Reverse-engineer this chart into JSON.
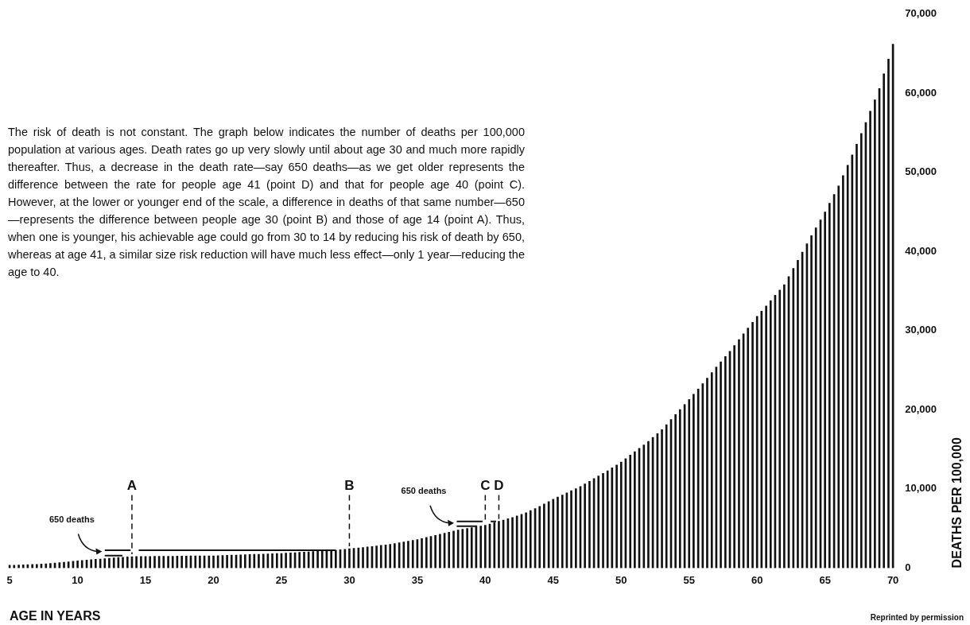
{
  "chart_data": {
    "type": "bar",
    "xlabel": "AGE IN YEARS",
    "ylabel": "DEATHS PER 100,000",
    "xlim": [
      4.7,
      70.3
    ],
    "xticks": [
      5,
      10,
      15,
      20,
      25,
      30,
      35,
      40,
      45,
      50,
      55,
      60,
      65,
      70
    ],
    "ylim": [
      0,
      70000
    ],
    "yticks": [
      {
        "value": 0,
        "label": "0"
      },
      {
        "value": 10000,
        "label": "10,000"
      },
      {
        "value": 20000,
        "label": "20,000"
      },
      {
        "value": 30000,
        "label": "30,000"
      },
      {
        "value": 40000,
        "label": "40,000"
      },
      {
        "value": 50000,
        "label": "50,000"
      },
      {
        "value": 60000,
        "label": "60,000"
      },
      {
        "value": 70000,
        "label": "70,000"
      }
    ],
    "grid": false,
    "legend": false,
    "series": [
      {
        "color": "#111111",
        "x": [
          5,
          5.33,
          5.67,
          6,
          6.33,
          6.67,
          7,
          7.33,
          7.67,
          8,
          8.33,
          8.67,
          9,
          9.33,
          9.67,
          10,
          10.33,
          10.67,
          11,
          11.33,
          11.67,
          12,
          12.33,
          12.67,
          13,
          13.33,
          13.67,
          14,
          14.33,
          14.67,
          15,
          15.33,
          15.67,
          16,
          16.33,
          16.67,
          17,
          17.33,
          17.67,
          18,
          18.33,
          18.67,
          19,
          19.33,
          19.67,
          20,
          20.33,
          20.67,
          21,
          21.33,
          21.67,
          22,
          22.33,
          22.67,
          23,
          23.33,
          23.67,
          24,
          24.33,
          24.67,
          25,
          25.33,
          25.67,
          26,
          26.33,
          26.67,
          27,
          27.33,
          27.67,
          28,
          28.33,
          28.67,
          29,
          29.33,
          29.67,
          30,
          30.33,
          30.67,
          31,
          31.33,
          31.67,
          32,
          32.33,
          32.67,
          33,
          33.33,
          33.67,
          34,
          34.33,
          34.67,
          35,
          35.33,
          35.67,
          36,
          36.33,
          36.67,
          37,
          37.33,
          37.67,
          38,
          38.33,
          38.67,
          39,
          39.33,
          39.67,
          40,
          40.33,
          40.67,
          41,
          41.33,
          41.67,
          42,
          42.33,
          42.67,
          43,
          43.33,
          43.67,
          44,
          44.33,
          44.67,
          45,
          45.33,
          45.67,
          46,
          46.33,
          46.67,
          47,
          47.33,
          47.67,
          48,
          48.33,
          48.67,
          49,
          49.33,
          49.67,
          50,
          50.33,
          50.67,
          51,
          51.33,
          51.67,
          52,
          52.33,
          52.67,
          53,
          53.33,
          53.67,
          54,
          54.33,
          54.67,
          55,
          55.33,
          55.67,
          56,
          56.33,
          56.67,
          57,
          57.33,
          57.67,
          58,
          58.33,
          58.67,
          59,
          59.33,
          59.67,
          60,
          60.33,
          60.67,
          61,
          61.33,
          61.67,
          62,
          62.33,
          62.67,
          63,
          63.33,
          63.67,
          64,
          64.33,
          64.67,
          65,
          65.33,
          65.67,
          66,
          66.33,
          66.67,
          67,
          67.33,
          67.67,
          68,
          68.33,
          68.67,
          69,
          69.33,
          69.67,
          70
        ],
        "values": [
          350,
          370,
          390,
          410,
          430,
          450,
          470,
          510,
          540,
          580,
          630,
          690,
          740,
          790,
          850,
          900,
          950,
          1000,
          1050,
          1100,
          1150,
          1200,
          1240,
          1290,
          1330,
          1370,
          1410,
          1450,
          1460,
          1460,
          1470,
          1470,
          1480,
          1480,
          1490,
          1490,
          1500,
          1510,
          1510,
          1520,
          1530,
          1530,
          1540,
          1540,
          1550,
          1550,
          1570,
          1590,
          1610,
          1630,
          1650,
          1670,
          1690,
          1710,
          1730,
          1750,
          1770,
          1790,
          1810,
          1830,
          1850,
          1880,
          1920,
          1950,
          1980,
          2020,
          2050,
          2080,
          2120,
          2150,
          2180,
          2220,
          2250,
          2320,
          2380,
          2450,
          2500,
          2550,
          2600,
          2670,
          2730,
          2800,
          2870,
          2930,
          3000,
          3100,
          3200,
          3300,
          3400,
          3500,
          3600,
          3730,
          3870,
          4000,
          4130,
          4270,
          4400,
          4530,
          4670,
          4800,
          4900,
          5000,
          5100,
          5200,
          5300,
          5400,
          5570,
          5730,
          5900,
          6070,
          6230,
          6400,
          6600,
          6800,
          7000,
          7270,
          7530,
          7800,
          8100,
          8400,
          8700,
          8970,
          9230,
          9500,
          9770,
          10030,
          10300,
          10630,
          10970,
          11300,
          11630,
          11970,
          12300,
          12670,
          13030,
          13400,
          13830,
          14270,
          14700,
          15130,
          15570,
          16000,
          16500,
          17000,
          17500,
          18130,
          18770,
          19400,
          20030,
          20670,
          21300,
          21970,
          22630,
          23300,
          24000,
          24700,
          25400,
          26070,
          26730,
          27400,
          28130,
          28870,
          29600,
          30330,
          31070,
          31800,
          32470,
          33130,
          33800,
          34470,
          35130,
          35800,
          36830,
          37870,
          38900,
          39930,
          40970,
          42000,
          43000,
          44000,
          45000,
          46100,
          47200,
          48300,
          49600,
          50900,
          52200,
          53570,
          54930,
          56300,
          57730,
          59170,
          60600,
          62470,
          64330,
          66200
        ]
      },
      {
        "type": "line",
        "color": "#111111",
        "x": [
          12,
          13.9
        ],
        "values": [
          2250,
          2250
        ]
      },
      {
        "type": "line",
        "color": "#111111",
        "x": [
          12,
          13.3
        ],
        "values": [
          1570,
          1570
        ]
      },
      {
        "type": "line",
        "color": "#111111",
        "x": [
          14.5,
          29
        ],
        "values": [
          2250,
          2250
        ]
      },
      {
        "type": "line",
        "color": "#111111",
        "x": [
          37.9,
          39.8
        ],
        "values": [
          5900,
          5900
        ]
      },
      {
        "type": "line",
        "color": "#111111",
        "x": [
          37.9,
          39.4
        ],
        "values": [
          5300,
          5300
        ]
      },
      {
        "type": "line",
        "color": "#111111",
        "x": [
          40.4,
          40.8
        ],
        "values": [
          5900,
          5900
        ]
      }
    ],
    "ref_lines": [
      {
        "axis": "x",
        "value": 14,
        "label": "A",
        "line_style": "dashed",
        "color": "#111111"
      },
      {
        "axis": "x",
        "value": 30,
        "label": "B",
        "line_style": "dashed",
        "color": "#111111"
      },
      {
        "axis": "x",
        "value": 40,
        "label": "C",
        "line_style": "dashed",
        "color": "#111111"
      },
      {
        "axis": "x",
        "value": 41,
        "label": "D",
        "line_style": "dashed",
        "color": "#111111"
      }
    ],
    "annotations": [
      "The risk of death is not constant. The graph below indicates the number of deaths per 100,000 population at various ages. Death rates go up very slowly until about age 30 and much more rapidly thereafter. Thus, a decrease in the death rate—say 650 deaths—as we get older represents the difference between the rate for people age 41 (point D) and that for people age 40 (point C). However, at the lower or younger end of the scale, a difference in deaths of that same number—650—represents the difference between people age 30 (point B) and those of age 14 (point A). Thus, when one is younger, his achievable age could go from 30 to 14 by reducing his risk of death by 650, whereas at age 41, a similar size risk reduction will have much less effect—only 1 year—reducing the age to 40.",
      {
        "text": "650 deaths",
        "x": 11.8,
        "y": 1900
      },
      {
        "text": "650 deaths",
        "x": 37.7,
        "y": 5500
      },
      "Reprinted by permission"
    ]
  }
}
